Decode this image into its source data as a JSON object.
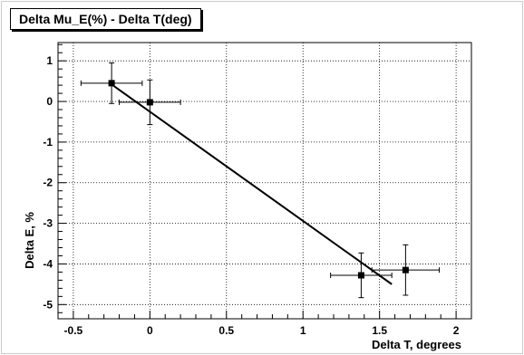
{
  "chart_data": {
    "type": "scatter",
    "title": "Delta Mu_E(%) - Delta T(deg)",
    "xlabel": "Delta T, degrees",
    "ylabel": "Delta E, %",
    "xlim": [
      -0.6,
      2.1
    ],
    "ylim": [
      -5.35,
      1.45
    ],
    "xticks": [
      -0.5,
      0,
      0.5,
      1,
      1.5,
      2
    ],
    "xtick_labels": [
      "-0.5",
      "0",
      "0.5",
      "1",
      "1.5",
      "2"
    ],
    "yticks": [
      1,
      0,
      -1,
      -2,
      -3,
      -4,
      -5
    ],
    "ytick_labels": [
      "1",
      "0",
      "-1",
      "-2",
      "-3",
      "-4",
      "-5"
    ],
    "grid": true,
    "points": [
      {
        "x": -0.25,
        "y": 0.45,
        "xerr": 0.2,
        "yerr": 0.5
      },
      {
        "x": 0.0,
        "y": -0.02,
        "xerr": 0.2,
        "yerr": 0.55
      },
      {
        "x": 1.38,
        "y": -4.28,
        "xerr": 0.2,
        "yerr": 0.55
      },
      {
        "x": 1.67,
        "y": -4.15,
        "xerr": 0.22,
        "yerr": 0.62
      }
    ],
    "fit_line": {
      "x": [
        -0.25,
        1.58
      ],
      "y": [
        0.42,
        -4.5
      ]
    },
    "colors": {
      "marker": "#000000",
      "line": "#000000",
      "grid": "#000000",
      "background": "#ffffff"
    }
  }
}
